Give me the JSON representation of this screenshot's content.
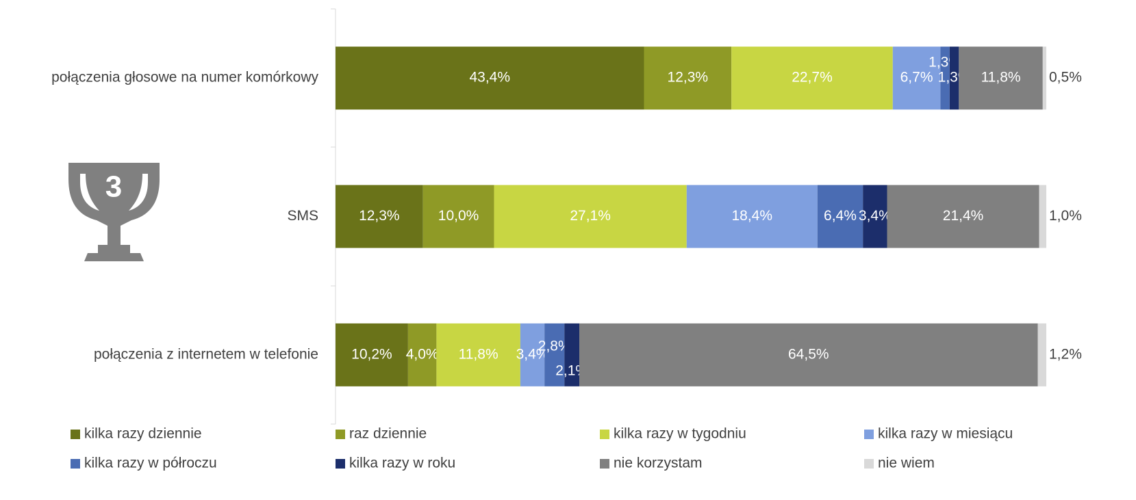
{
  "badge": "3",
  "chart_data": {
    "type": "bar",
    "orientation": "horizontal",
    "stacked": true,
    "categories": [
      "połączenia głosowe na numer komórkowy",
      "SMS",
      "połączenia z internetem w telefonie"
    ],
    "xlim": [
      0,
      100
    ],
    "legend": "bottom",
    "series": [
      {
        "name": "kilka razy dziennie",
        "color": "#6a7319",
        "values": [
          43.4,
          12.3,
          10.2
        ],
        "value_labels": [
          "43,4%",
          "12,3%",
          "10,2%"
        ]
      },
      {
        "name": "raz dziennie",
        "color": "#8f9a26",
        "values": [
          12.3,
          10.0,
          4.0
        ],
        "value_labels": [
          "12,3%",
          "10,0%",
          "4,0%"
        ]
      },
      {
        "name": "kilka razy w tygodniu",
        "color": "#c8d643",
        "values": [
          22.7,
          27.1,
          11.8
        ],
        "value_labels": [
          "22,7%",
          "27,1%",
          "11,8%"
        ]
      },
      {
        "name": "kilka razy w miesiącu",
        "color": "#7f9fdf",
        "values": [
          6.7,
          18.4,
          3.4
        ],
        "value_labels": [
          "6,7%",
          "18,4%",
          "3,4%"
        ]
      },
      {
        "name": "kilka razy w półroczu",
        "color": "#4a6cb3",
        "values": [
          1.3,
          6.4,
          2.8
        ],
        "value_labels": [
          "1,3%",
          "6,4%",
          "2,8%"
        ]
      },
      {
        "name": "kilka razy w roku",
        "color": "#1c2e6b",
        "values": [
          1.3,
          3.4,
          2.1
        ],
        "value_labels": [
          "1,3%",
          "3,4%",
          "2,1%"
        ]
      },
      {
        "name": "nie korzystam",
        "color": "#808080",
        "values": [
          11.8,
          21.4,
          64.5
        ],
        "value_labels": [
          "11,8%",
          "21,4%",
          "64,5%"
        ]
      },
      {
        "name": "nie wiem",
        "color": "#d9d9d9",
        "values": [
          0.5,
          1.0,
          1.2
        ],
        "value_labels": [
          "0,5%",
          "1,0%",
          "1,2%"
        ]
      }
    ]
  }
}
